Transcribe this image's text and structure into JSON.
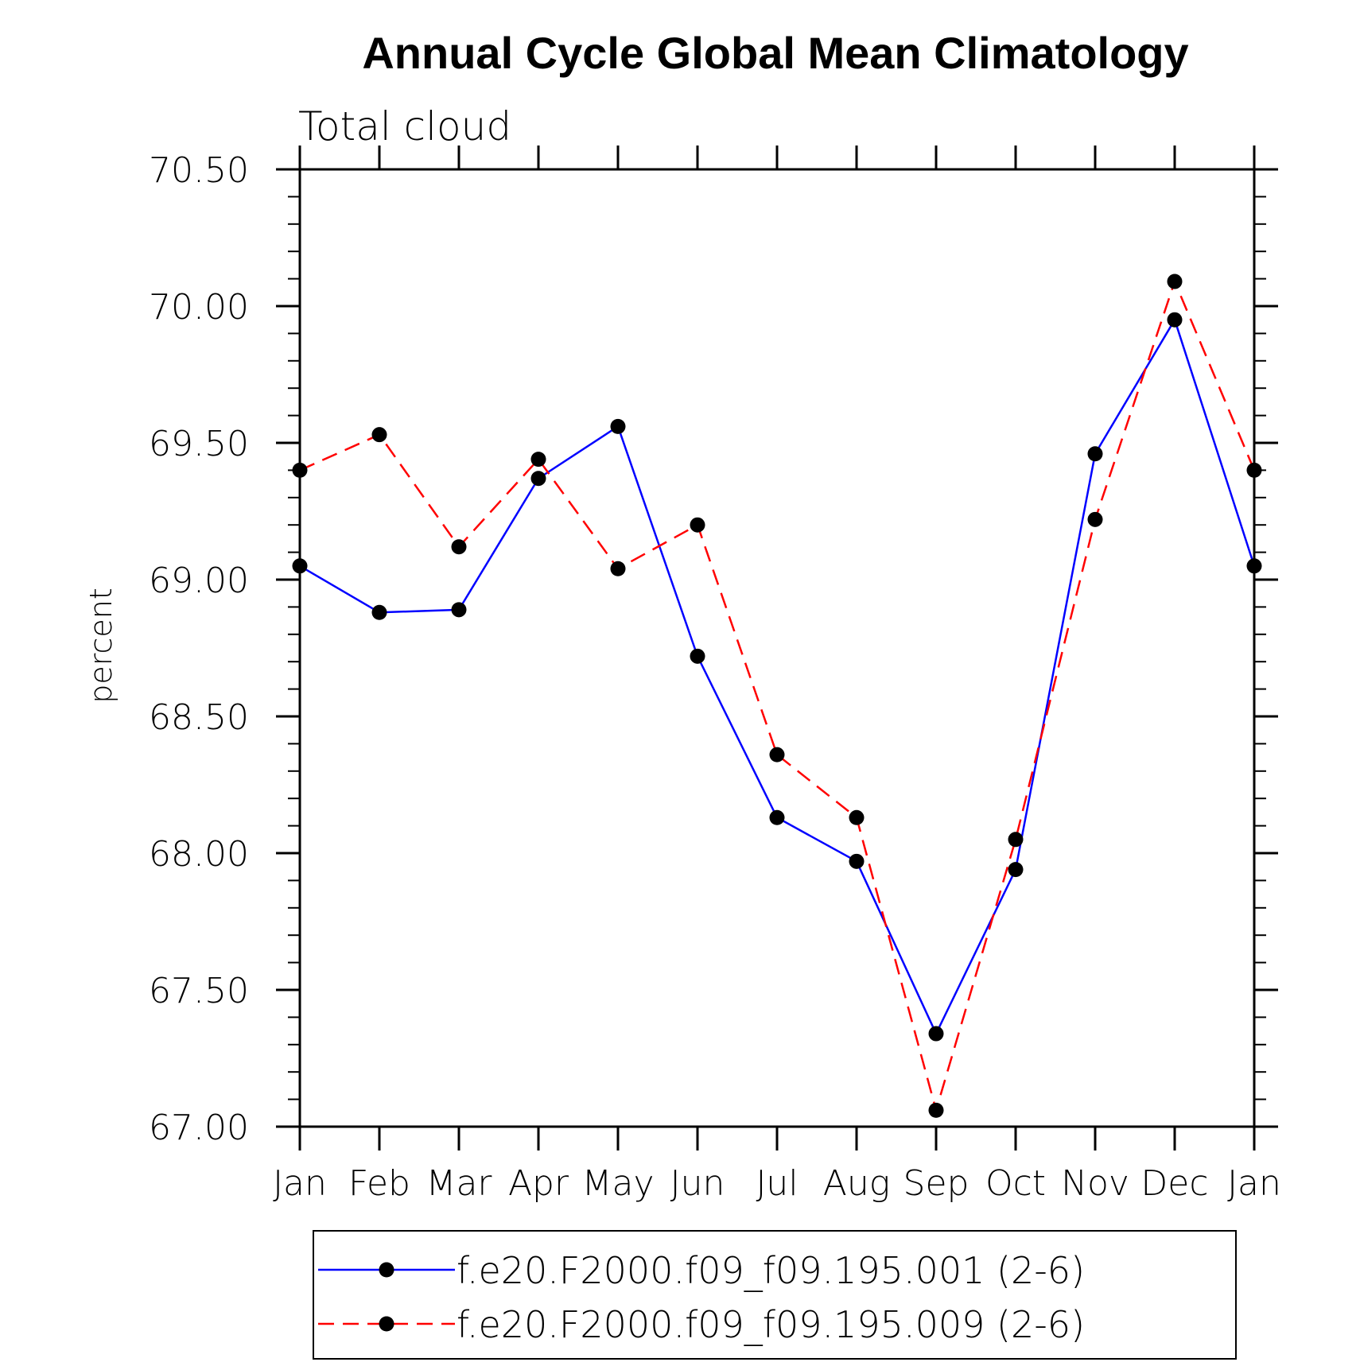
{
  "chart_data": {
    "type": "line",
    "title": "Annual Cycle Global Mean Climatology",
    "subtitle": "Total cloud",
    "xlabel": "",
    "ylabel": "percent",
    "categories": [
      "Jan",
      "Feb",
      "Mar",
      "Apr",
      "May",
      "Jun",
      "Jul",
      "Aug",
      "Sep",
      "Oct",
      "Nov",
      "Dec",
      "Jan"
    ],
    "ylim": [
      67.0,
      70.5
    ],
    "yticks": [
      "67.00",
      "67.50",
      "68.00",
      "68.50",
      "69.00",
      "69.50",
      "70.00",
      "70.50"
    ],
    "series": [
      {
        "name": "f.e20.F2000.f09_f09.195.001 (2-6)",
        "color": "#0000ff",
        "dash": "solid",
        "values": [
          69.05,
          68.88,
          68.89,
          69.37,
          69.56,
          68.72,
          68.13,
          67.97,
          67.34,
          67.94,
          69.46,
          69.95,
          69.05
        ]
      },
      {
        "name": "f.e20.F2000.f09_f09.195.009 (2-6)",
        "color": "#ff0000",
        "dash": "dashed",
        "values": [
          69.4,
          69.53,
          69.12,
          69.44,
          69.04,
          69.2,
          68.36,
          68.13,
          67.06,
          68.05,
          69.22,
          70.09,
          69.4
        ]
      }
    ],
    "legend_position": "bottom",
    "grid": false
  }
}
